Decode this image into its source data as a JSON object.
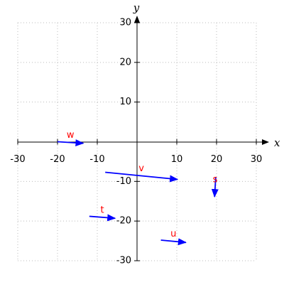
{
  "chart_data": {
    "type": "vector",
    "x_label": "x",
    "y_label": "y",
    "xlim": [
      -30,
      30
    ],
    "ylim": [
      -30,
      30
    ],
    "xticks": [
      -30,
      -20,
      -10,
      10,
      20,
      30
    ],
    "yticks": [
      -30,
      -20,
      -10,
      10,
      20,
      30
    ],
    "grid": true,
    "arrow_color": "#0000ff",
    "label_color": "#ff0000",
    "vectors": [
      {
        "name": "w",
        "x1": -20,
        "y1": 0,
        "x2": -13.5,
        "y2": -0.4
      },
      {
        "name": "v",
        "x1": -8,
        "y1": -7.7,
        "x2": 10.2,
        "y2": -9.5
      },
      {
        "name": "s",
        "x1": 19.8,
        "y1": -8.9,
        "x2": 19.5,
        "y2": -13.9
      },
      {
        "name": "t",
        "x1": -12,
        "y1": -18.8,
        "x2": -5.5,
        "y2": -19.3
      },
      {
        "name": "u",
        "x1": 6,
        "y1": -24.8,
        "x2": 12.3,
        "y2": -25.4
      }
    ]
  }
}
